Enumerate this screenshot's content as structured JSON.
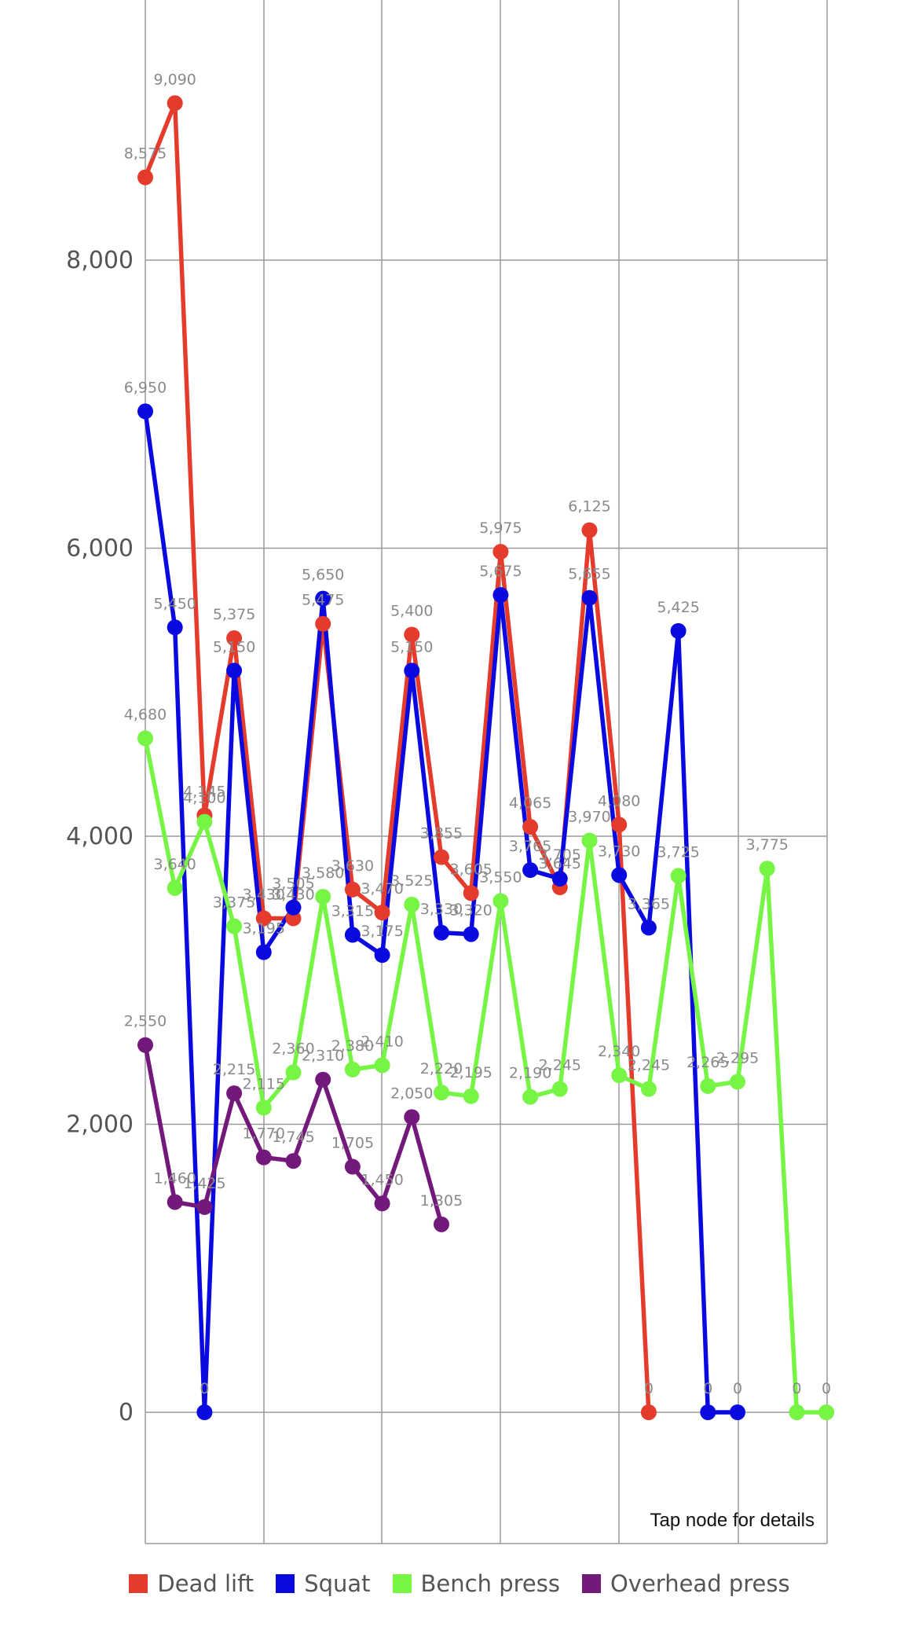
{
  "chart_data": {
    "type": "line",
    "title": "",
    "xlabel": "",
    "ylabel": "",
    "ylim": [
      -900,
      9500
    ],
    "yticks": [
      0,
      2000,
      4000,
      6000,
      8000
    ],
    "ytick_labels": [
      "0",
      "2,000",
      "4,000",
      "6,000",
      "8,000"
    ],
    "grid": true,
    "legend_position": "bottom",
    "note": "Tap node for details",
    "series": [
      {
        "name": "Dead lift",
        "color": "#e53b2c",
        "x": [
          0,
          1,
          2,
          3,
          4,
          5,
          6,
          7,
          8,
          9,
          10,
          11,
          12,
          13,
          14,
          15,
          16,
          17
        ],
        "values": [
          8575,
          9090,
          4145,
          5375,
          3430,
          3430,
          5475,
          3630,
          3470,
          5400,
          3855,
          3605,
          5975,
          4065,
          3645,
          6125,
          4080,
          0
        ],
        "labels": [
          "8,575",
          "9,090",
          "4,145",
          "5,375",
          "3,430",
          "3,430",
          "5,475",
          "3,630",
          "3,470",
          "5,400",
          "3,855",
          "3,605",
          "5,975",
          "4,065",
          "3,645",
          "6,125",
          "4,080",
          "0"
        ]
      },
      {
        "name": "Squat",
        "color": "#0a0ae0",
        "x": [
          0,
          1,
          2,
          3,
          4,
          5,
          6,
          7,
          8,
          9,
          10,
          11,
          12,
          13,
          14,
          15,
          16,
          17,
          18,
          19,
          20
        ],
        "values": [
          6950,
          5450,
          0,
          5150,
          3195,
          3505,
          5650,
          3315,
          3175,
          5150,
          3330,
          3320,
          5675,
          3765,
          3705,
          5655,
          3730,
          3365,
          5425,
          0,
          0
        ],
        "labels": [
          "6,950",
          "5,450",
          "0",
          "5,150",
          "3,195",
          "3,505",
          "5,650",
          "3,315",
          "3,175",
          "5,150",
          "3,330",
          "3,320",
          "5,675",
          "3,765",
          "3,705",
          "5,655",
          "3,730",
          "3,365",
          "5,425",
          "0",
          "0"
        ]
      },
      {
        "name": "Bench press",
        "color": "#76f545",
        "x": [
          0,
          1,
          2,
          3,
          4,
          5,
          6,
          7,
          8,
          9,
          10,
          11,
          12,
          13,
          14,
          15,
          16,
          17,
          18,
          19,
          20,
          21,
          22,
          23
        ],
        "values": [
          4680,
          3640,
          4100,
          3375,
          2115,
          2360,
          3580,
          2380,
          2410,
          3525,
          2220,
          2195,
          3550,
          2190,
          2245,
          3970,
          2340,
          2245,
          3725,
          2265,
          2295,
          3775,
          0,
          0
        ],
        "labels": [
          "4,680",
          "3,640",
          "4,100",
          "3,375",
          "2,115",
          "2,360",
          "3,580",
          "2,380",
          "2,410",
          "3,525",
          "2,220",
          "2,195",
          "3,550",
          "2,190",
          "2,245",
          "3,970",
          "2,340",
          "2,245",
          "3,725",
          "2,265",
          "2,295",
          "3,775",
          "0",
          "0"
        ]
      },
      {
        "name": "Overhead press",
        "color": "#74197c",
        "x": [
          0,
          1,
          2,
          3,
          4,
          5,
          6,
          7,
          8,
          9,
          10
        ],
        "values": [
          2550,
          1460,
          1425,
          2215,
          1770,
          1745,
          2310,
          1705,
          1450,
          2050,
          1305
        ],
        "labels": [
          "2,550",
          "1,460",
          "1,425",
          "2,215",
          "1,770",
          "1,745",
          "2,310",
          "1,705",
          "1,450",
          "2,050",
          "1,305"
        ]
      }
    ]
  }
}
